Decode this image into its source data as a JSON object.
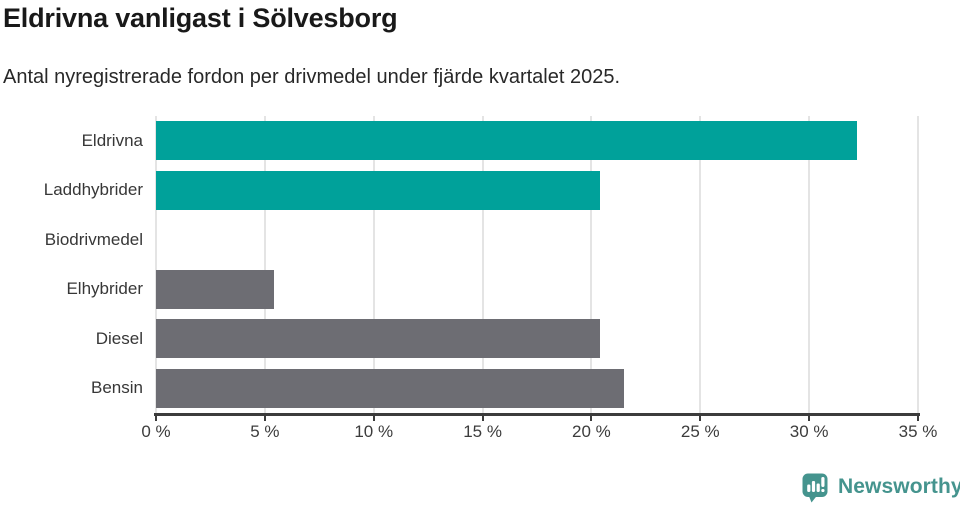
{
  "header": {
    "title": "Eldrivna vanligast i Sölvesborg",
    "subtitle": "Antal nyregistrerade fordon per drivmedel under fjärde kvartalet 2025."
  },
  "chart_data": {
    "type": "bar",
    "orientation": "horizontal",
    "title": "Eldrivna vanligast i Sölvesborg",
    "subtitle": "Antal nyregistrerade fordon per drivmedel under fjärde kvartalet 2025.",
    "categories": [
      "Eldrivna",
      "Laddhybrider",
      "Biodrivmedel",
      "Elhybrider",
      "Diesel",
      "Bensin"
    ],
    "values": [
      32.2,
      20.4,
      0,
      5.4,
      20.4,
      21.5
    ],
    "unit": "%",
    "xlim": [
      0,
      35
    ],
    "x_ticks": [
      0,
      5,
      10,
      15,
      20,
      25,
      30,
      35
    ],
    "x_tick_labels": [
      "0 %",
      "5 %",
      "10 %",
      "15 %",
      "20 %",
      "25 %",
      "30 %",
      "35 %"
    ],
    "bar_colors": [
      "#00a19a",
      "#00a19a",
      "#6d6d73",
      "#6d6d73",
      "#6d6d73",
      "#6d6d73"
    ],
    "colors": {
      "highlight": "#00a19a",
      "default": "#6d6d73",
      "gridline": "#e4e4e4",
      "axis": "#3c3c3c"
    },
    "grid": true,
    "legend": false
  },
  "footer": {
    "brand": "Newsworthy",
    "brand_color": "#45948e",
    "logo_icon": "newsworthy-speech-bubble-bars-icon"
  }
}
